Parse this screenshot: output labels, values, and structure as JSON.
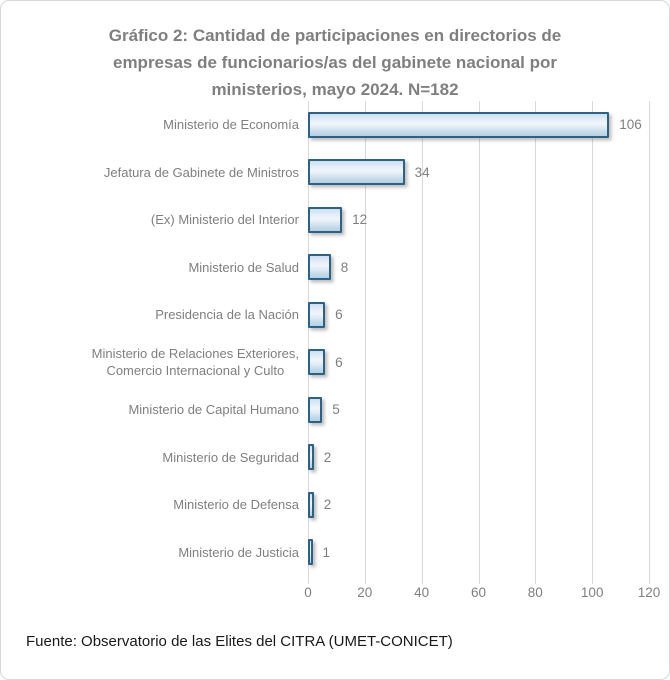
{
  "title": {
    "text": "Gráfico 2: Cantidad de participaciones en directorios de empresas de funcionarios/as del gabinete nacional por ministerios, mayo 2024. N=182",
    "lines": [
      "Gráfico 2: Cantidad de participaciones en directorios de",
      "empresas de funcionarios/as del gabinete nacional por",
      "ministerios, mayo 2024. N=182"
    ]
  },
  "footer": {
    "source": "Fuente: Observatorio de las Elites del CITRA (UMET-CONICET)"
  },
  "colors": {
    "title_text": "#7f7f7f",
    "axis_text": "#7f7f7f",
    "gridline": "#d9d9d9",
    "bar_border": "#2e6284",
    "bar_fill_light": "#eff5fa",
    "bar_fill_dark": "#b4cfe4",
    "source_text": "#191919",
    "frame_border": "#d6d9db",
    "background": "#ffffff"
  },
  "chart_data": {
    "type": "bar",
    "orientation": "horizontal",
    "title": "Gráfico 2: Cantidad de participaciones en directorios de empresas de funcionarios/as del gabinete nacional por ministerios, mayo 2024. N=182",
    "categories": [
      "Ministerio de Economía",
      "Jefatura de Gabinete de Ministros",
      "(Ex) Ministerio del Interior",
      "Ministerio de Salud",
      "Presidencia de la Nación",
      "Ministerio de Relaciones Exteriores, Comercio Internacional y Culto",
      "Ministerio de Capital Humano",
      "Ministerio de Seguridad",
      "Ministerio de Defensa",
      "Ministerio de Justicia"
    ],
    "category_label_lines": [
      [
        "Ministerio de Economía"
      ],
      [
        "Jefatura de Gabinete de Ministros"
      ],
      [
        "(Ex) Ministerio del Interior"
      ],
      [
        "Ministerio de Salud"
      ],
      [
        "Presidencia de la Nación"
      ],
      [
        "Ministerio de Relaciones Exteriores,",
        "Comercio Internacional y Culto"
      ],
      [
        "Ministerio de Capital Humano"
      ],
      [
        "Ministerio de Seguridad"
      ],
      [
        "Ministerio de Defensa"
      ],
      [
        "Ministerio de Justicia"
      ]
    ],
    "values": [
      106,
      34,
      12,
      8,
      6,
      6,
      5,
      2,
      2,
      1
    ],
    "total_n": 182,
    "xlabel": "",
    "ylabel": "",
    "xlim": [
      0,
      120
    ],
    "xticks": [
      0,
      20,
      40,
      60,
      80,
      100,
      120
    ],
    "grid": true,
    "data_labels": true,
    "legend": false,
    "source": "Fuente: Observatorio de las Elites del CITRA (UMET-CONICET)"
  }
}
